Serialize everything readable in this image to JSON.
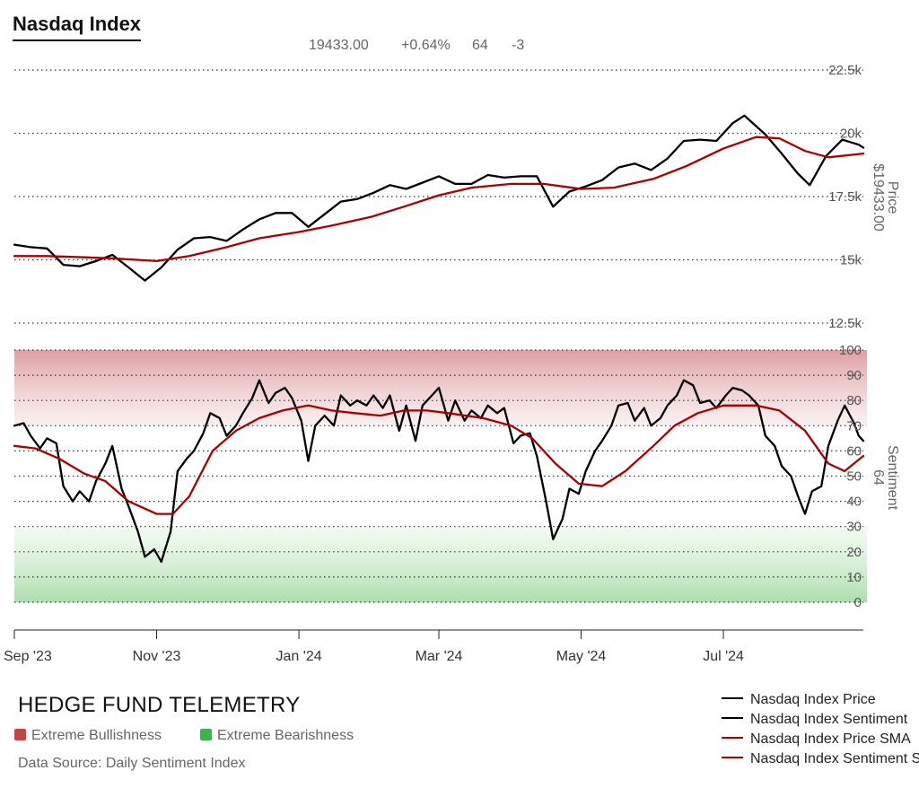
{
  "title": "Nasdaq Index",
  "stats": {
    "price": "19433.00",
    "change": "+0.64%",
    "sentiment": "64",
    "sentiment_change": "-3"
  },
  "brand": "HEDGE FUND TELEMETRY",
  "zones": {
    "bullish_label": "Extreme Bullishness",
    "bearish_label": "Extreme Bearishness",
    "bullish_color": "#c0444a",
    "bearish_color": "#3cb44b"
  },
  "source": "Data Source: Daily Sentiment Index",
  "legend": [
    {
      "label": "Nasdaq Index Price",
      "color": "#000000"
    },
    {
      "label": "Nasdaq Index Sentiment",
      "color": "#000000"
    },
    {
      "label": "Nasdaq Index Price SMA",
      "color": "#aa0000"
    },
    {
      "label": "Nasdaq Index Sentiment SMA",
      "color": "#aa0000"
    }
  ],
  "chart_data": [
    {
      "type": "line",
      "panel": "price",
      "ylabel": "Price",
      "last_value_label": "$19433.00",
      "ylim": [
        12500,
        22500
      ],
      "yticks": [
        "12.5k",
        "15k",
        "17.5k",
        "20k",
        "22.5k"
      ],
      "grid": true,
      "x_range": [
        "2023-09-01",
        "2024-08-30"
      ],
      "xticks": [
        {
          "date": "2023-09-01",
          "label": "Sep '23"
        },
        {
          "date": "2023-11-01",
          "label": "Nov '23"
        },
        {
          "date": "2024-01-01",
          "label": "Jan '24"
        },
        {
          "date": "2024-03-01",
          "label": "Mar '24"
        },
        {
          "date": "2024-05-01",
          "label": "May '24"
        },
        {
          "date": "2024-07-01",
          "label": "Jul '24"
        }
      ],
      "series": [
        {
          "name": "Nasdaq Index Price",
          "color": "#000000",
          "points": [
            [
              "2023-09-01",
              15600
            ],
            [
              "2023-09-08",
              15500
            ],
            [
              "2023-09-15",
              15450
            ],
            [
              "2023-09-22",
              14800
            ],
            [
              "2023-09-29",
              14750
            ],
            [
              "2023-10-06",
              14950
            ],
            [
              "2023-10-13",
              15200
            ],
            [
              "2023-10-20",
              14700
            ],
            [
              "2023-10-27",
              14180
            ],
            [
              "2023-11-03",
              14700
            ],
            [
              "2023-11-10",
              15400
            ],
            [
              "2023-11-17",
              15850
            ],
            [
              "2023-11-24",
              15900
            ],
            [
              "2023-12-01",
              15750
            ],
            [
              "2023-12-08",
              16200
            ],
            [
              "2023-12-15",
              16600
            ],
            [
              "2023-12-22",
              16850
            ],
            [
              "2023-12-29",
              16850
            ],
            [
              "2024-01-05",
              16300
            ],
            [
              "2024-01-12",
              16800
            ],
            [
              "2024-01-19",
              17300
            ],
            [
              "2024-01-26",
              17400
            ],
            [
              "2024-02-02",
              17650
            ],
            [
              "2024-02-09",
              17950
            ],
            [
              "2024-02-16",
              17800
            ],
            [
              "2024-02-23",
              18050
            ],
            [
              "2024-03-01",
              18300
            ],
            [
              "2024-03-08",
              18000
            ],
            [
              "2024-03-15",
              18000
            ],
            [
              "2024-03-22",
              18350
            ],
            [
              "2024-03-29",
              18250
            ],
            [
              "2024-04-05",
              18300
            ],
            [
              "2024-04-12",
              18300
            ],
            [
              "2024-04-19",
              17100
            ],
            [
              "2024-04-26",
              17700
            ],
            [
              "2024-05-03",
              17900
            ],
            [
              "2024-05-10",
              18150
            ],
            [
              "2024-05-17",
              18650
            ],
            [
              "2024-05-24",
              18800
            ],
            [
              "2024-05-31",
              18550
            ],
            [
              "2024-06-07",
              19000
            ],
            [
              "2024-06-14",
              19700
            ],
            [
              "2024-06-21",
              19750
            ],
            [
              "2024-06-28",
              19700
            ],
            [
              "2024-07-05",
              20400
            ],
            [
              "2024-07-10",
              20700
            ],
            [
              "2024-07-19",
              19950
            ],
            [
              "2024-07-26",
              19200
            ],
            [
              "2024-08-02",
              18400
            ],
            [
              "2024-08-07",
              17950
            ],
            [
              "2024-08-14",
              19100
            ],
            [
              "2024-08-21",
              19750
            ],
            [
              "2024-08-28",
              19550
            ],
            [
              "2024-08-30",
              19433
            ]
          ]
        },
        {
          "name": "Nasdaq Index Price SMA",
          "color": "#aa0000",
          "points": [
            [
              "2023-09-01",
              15150
            ],
            [
              "2023-09-15",
              15150
            ],
            [
              "2023-10-01",
              15100
            ],
            [
              "2023-10-15",
              15050
            ],
            [
              "2023-11-01",
              14950
            ],
            [
              "2023-11-15",
              15150
            ],
            [
              "2023-12-01",
              15500
            ],
            [
              "2023-12-15",
              15850
            ],
            [
              "2024-01-01",
              16100
            ],
            [
              "2024-01-15",
              16350
            ],
            [
              "2024-02-01",
              16700
            ],
            [
              "2024-02-15",
              17100
            ],
            [
              "2024-03-01",
              17550
            ],
            [
              "2024-03-15",
              17850
            ],
            [
              "2024-04-01",
              18000
            ],
            [
              "2024-04-15",
              18000
            ],
            [
              "2024-05-01",
              17800
            ],
            [
              "2024-05-15",
              17850
            ],
            [
              "2024-06-01",
              18200
            ],
            [
              "2024-06-15",
              18700
            ],
            [
              "2024-07-01",
              19400
            ],
            [
              "2024-07-15",
              19850
            ],
            [
              "2024-07-25",
              19800
            ],
            [
              "2024-08-05",
              19300
            ],
            [
              "2024-08-15",
              19050
            ],
            [
              "2024-08-30",
              19200
            ]
          ]
        }
      ]
    },
    {
      "type": "line",
      "panel": "sentiment",
      "ylabel": "Sentiment",
      "last_value_label": "64",
      "ylim": [
        0,
        100
      ],
      "yticks": [
        "0",
        "10",
        "20",
        "30",
        "40",
        "50",
        "60",
        "70",
        "80",
        "90",
        "100"
      ],
      "grid": true,
      "bands": [
        {
          "from": 70,
          "to": 100,
          "zone": "Extreme Bullishness"
        },
        {
          "from": 0,
          "to": 30,
          "zone": "Extreme Bearishness"
        }
      ],
      "series": [
        {
          "name": "Nasdaq Index Sentiment",
          "color": "#000000",
          "points": [
            [
              "2023-09-01",
              70
            ],
            [
              "2023-09-05",
              71
            ],
            [
              "2023-09-08",
              66
            ],
            [
              "2023-09-12",
              61
            ],
            [
              "2023-09-15",
              65
            ],
            [
              "2023-09-19",
              63
            ],
            [
              "2023-09-22",
              46
            ],
            [
              "2023-09-26",
              40
            ],
            [
              "2023-09-29",
              44
            ],
            [
              "2023-10-03",
              40
            ],
            [
              "2023-10-06",
              48
            ],
            [
              "2023-10-10",
              55
            ],
            [
              "2023-10-13",
              62
            ],
            [
              "2023-10-17",
              45
            ],
            [
              "2023-10-20",
              38
            ],
            [
              "2023-10-24",
              28
            ],
            [
              "2023-10-27",
              18
            ],
            [
              "2023-10-31",
              21
            ],
            [
              "2023-11-03",
              16
            ],
            [
              "2023-11-07",
              28
            ],
            [
              "2023-11-10",
              52
            ],
            [
              "2023-11-14",
              57
            ],
            [
              "2023-11-17",
              60
            ],
            [
              "2023-11-21",
              67
            ],
            [
              "2023-11-24",
              75
            ],
            [
              "2023-11-28",
              73
            ],
            [
              "2023-12-01",
              66
            ],
            [
              "2023-12-05",
              70
            ],
            [
              "2023-12-08",
              75
            ],
            [
              "2023-12-12",
              81
            ],
            [
              "2023-12-15",
              88
            ],
            [
              "2023-12-19",
              79
            ],
            [
              "2023-12-22",
              83
            ],
            [
              "2023-12-26",
              85
            ],
            [
              "2023-12-29",
              81
            ],
            [
              "2024-01-02",
              72
            ],
            [
              "2024-01-05",
              56
            ],
            [
              "2024-01-08",
              70
            ],
            [
              "2024-01-12",
              74
            ],
            [
              "2024-01-16",
              70
            ],
            [
              "2024-01-19",
              82
            ],
            [
              "2024-01-23",
              78
            ],
            [
              "2024-01-26",
              80
            ],
            [
              "2024-01-30",
              78
            ],
            [
              "2024-02-02",
              82
            ],
            [
              "2024-02-06",
              77
            ],
            [
              "2024-02-09",
              82
            ],
            [
              "2024-02-13",
              68
            ],
            [
              "2024-02-16",
              78
            ],
            [
              "2024-02-20",
              64
            ],
            [
              "2024-02-23",
              78
            ],
            [
              "2024-02-27",
              82
            ],
            [
              "2024-03-01",
              85
            ],
            [
              "2024-03-05",
              72
            ],
            [
              "2024-03-08",
              80
            ],
            [
              "2024-03-12",
              72
            ],
            [
              "2024-03-15",
              76
            ],
            [
              "2024-03-19",
              73
            ],
            [
              "2024-03-22",
              78
            ],
            [
              "2024-03-26",
              75
            ],
            [
              "2024-03-29",
              77
            ],
            [
              "2024-04-02",
              63
            ],
            [
              "2024-04-05",
              66
            ],
            [
              "2024-04-09",
              67
            ],
            [
              "2024-04-12",
              58
            ],
            [
              "2024-04-16",
              40
            ],
            [
              "2024-04-19",
              25
            ],
            [
              "2024-04-23",
              33
            ],
            [
              "2024-04-26",
              45
            ],
            [
              "2024-04-30",
              43
            ],
            [
              "2024-05-03",
              52
            ],
            [
              "2024-05-07",
              60
            ],
            [
              "2024-05-10",
              64
            ],
            [
              "2024-05-14",
              70
            ],
            [
              "2024-05-17",
              78
            ],
            [
              "2024-05-21",
              79
            ],
            [
              "2024-05-24",
              72
            ],
            [
              "2024-05-28",
              77
            ],
            [
              "2024-05-31",
              70
            ],
            [
              "2024-06-04",
              73
            ],
            [
              "2024-06-07",
              78
            ],
            [
              "2024-06-11",
              82
            ],
            [
              "2024-06-14",
              88
            ],
            [
              "2024-06-18",
              86
            ],
            [
              "2024-06-21",
              79
            ],
            [
              "2024-06-25",
              80
            ],
            [
              "2024-06-28",
              77
            ],
            [
              "2024-07-02",
              82
            ],
            [
              "2024-07-05",
              85
            ],
            [
              "2024-07-09",
              84
            ],
            [
              "2024-07-12",
              82
            ],
            [
              "2024-07-16",
              78
            ],
            [
              "2024-07-19",
              66
            ],
            [
              "2024-07-23",
              62
            ],
            [
              "2024-07-26",
              54
            ],
            [
              "2024-07-30",
              50
            ],
            [
              "2024-08-02",
              42
            ],
            [
              "2024-08-05",
              35
            ],
            [
              "2024-08-08",
              44
            ],
            [
              "2024-08-12",
              46
            ],
            [
              "2024-08-15",
              62
            ],
            [
              "2024-08-19",
              72
            ],
            [
              "2024-08-22",
              78
            ],
            [
              "2024-08-26",
              71
            ],
            [
              "2024-08-28",
              66
            ],
            [
              "2024-08-30",
              64
            ]
          ]
        },
        {
          "name": "Nasdaq Index Sentiment SMA",
          "color": "#aa0000",
          "points": [
            [
              "2023-09-01",
              62
            ],
            [
              "2023-09-10",
              61
            ],
            [
              "2023-09-20",
              57
            ],
            [
              "2023-10-01",
              51
            ],
            [
              "2023-10-10",
              48
            ],
            [
              "2023-10-20",
              40
            ],
            [
              "2023-11-01",
              35
            ],
            [
              "2023-11-08",
              35
            ],
            [
              "2023-11-15",
              42
            ],
            [
              "2023-11-25",
              60
            ],
            [
              "2023-12-05",
              68
            ],
            [
              "2023-12-15",
              73
            ],
            [
              "2023-12-25",
              76
            ],
            [
              "2024-01-05",
              78
            ],
            [
              "2024-01-15",
              76
            ],
            [
              "2024-01-25",
              75
            ],
            [
              "2024-02-05",
              74
            ],
            [
              "2024-02-15",
              76
            ],
            [
              "2024-02-25",
              76
            ],
            [
              "2024-03-05",
              75
            ],
            [
              "2024-03-20",
              73
            ],
            [
              "2024-04-01",
              70
            ],
            [
              "2024-04-10",
              65
            ],
            [
              "2024-04-20",
              55
            ],
            [
              "2024-04-30",
              47
            ],
            [
              "2024-05-10",
              46
            ],
            [
              "2024-05-20",
              52
            ],
            [
              "2024-06-01",
              62
            ],
            [
              "2024-06-10",
              70
            ],
            [
              "2024-06-20",
              75
            ],
            [
              "2024-07-01",
              78
            ],
            [
              "2024-07-15",
              78
            ],
            [
              "2024-07-25",
              76
            ],
            [
              "2024-08-05",
              68
            ],
            [
              "2024-08-15",
              55
            ],
            [
              "2024-08-22",
              52
            ],
            [
              "2024-08-30",
              58
            ]
          ]
        }
      ]
    }
  ]
}
